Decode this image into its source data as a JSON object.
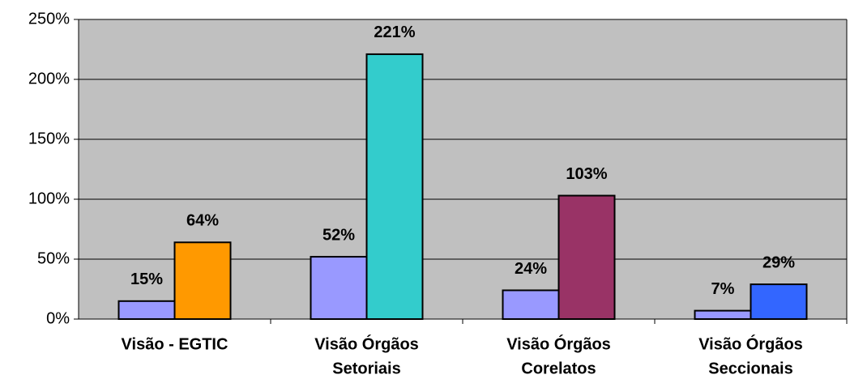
{
  "chart_data": {
    "type": "bar",
    "categories": [
      "Visão - EGTIC",
      [
        "Visão Órgãos",
        "Setoriais"
      ],
      [
        "Visão Órgãos",
        "Corelatos"
      ],
      [
        "Visão Órgãos",
        "Seccionais"
      ]
    ],
    "series": [
      {
        "color": "#9999ff",
        "values": [
          15,
          52,
          24,
          7
        ],
        "value_labels": [
          "15%",
          "52%",
          "24%",
          "7%"
        ]
      },
      {
        "colors": [
          "#ff9900",
          "#33cccc",
          "#993366",
          "#3366ff"
        ],
        "values": [
          64,
          221,
          103,
          29
        ],
        "value_labels": [
          "64%",
          "221%",
          "103%",
          "29%"
        ]
      }
    ],
    "ylim": [
      0,
      250
    ],
    "yticks": [
      {
        "value": 0,
        "label": "0%"
      },
      {
        "value": 50,
        "label": "50%"
      },
      {
        "value": 100,
        "label": "100%"
      },
      {
        "value": 150,
        "label": "150%"
      },
      {
        "value": 200,
        "label": "200%"
      },
      {
        "value": 250,
        "label": "250%"
      }
    ],
    "grid": true,
    "plot_background": "#c0c0c0"
  }
}
